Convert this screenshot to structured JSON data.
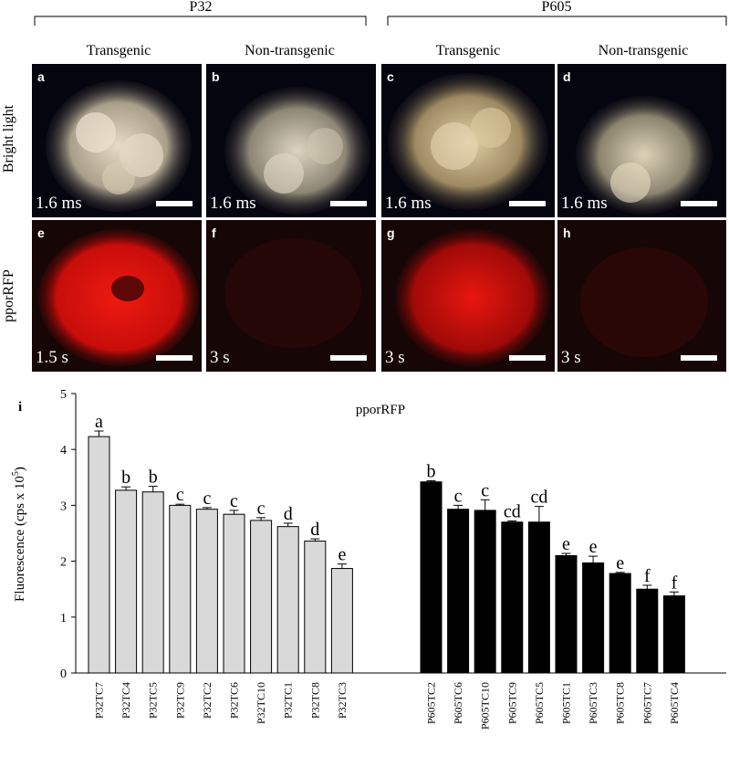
{
  "figure": {
    "group_headers": [
      "P32",
      "P605"
    ],
    "column_labels": [
      "Transgenic",
      "Non-transgenic",
      "Transgenic",
      "Non-transgenic"
    ],
    "row_labels": [
      "Bright light",
      "pporRFP"
    ],
    "panels_top": [
      {
        "letter": "a",
        "exposure": "1.6 ms"
      },
      {
        "letter": "b",
        "exposure": "1.6 ms"
      },
      {
        "letter": "c",
        "exposure": "1.6 ms"
      },
      {
        "letter": "d",
        "exposure": "1.6 ms"
      }
    ],
    "panels_bottom": [
      {
        "letter": "e",
        "exposure": "1.5 s"
      },
      {
        "letter": "f",
        "exposure": "3 s"
      },
      {
        "letter": "g",
        "exposure": "3 s"
      },
      {
        "letter": "h",
        "exposure": "3 s"
      }
    ],
    "colors": {
      "bright_bg": "#050510",
      "callus_light": "#d8cfb8",
      "rfp_red": "#e01010",
      "bar_light": "#d9d9d9",
      "bar_dark": "#000000"
    }
  },
  "chart_data": {
    "type": "bar",
    "panel_letter": "i",
    "title": "pporRFP",
    "ylabel": "Fluorescence (cps x 10",
    "ylabel_exp": "5",
    "ylim": [
      0,
      5
    ],
    "yticks": [
      "0",
      "1",
      "2",
      "3",
      "4",
      "5"
    ],
    "series": [
      {
        "group": "P32",
        "color": "#d9d9d9",
        "categories": [
          "P32TC7",
          "P32TC4",
          "P32TC5",
          "P32TC9",
          "P32TC2",
          "P32TC6",
          "P32TC10",
          "P32TC1",
          "P32TC8",
          "P32TC3"
        ],
        "values": [
          4.23,
          3.27,
          3.24,
          3.0,
          2.93,
          2.84,
          2.73,
          2.62,
          2.36,
          1.87
        ],
        "errors": [
          0.1,
          0.06,
          0.1,
          0.02,
          0.03,
          0.07,
          0.05,
          0.06,
          0.04,
          0.08
        ],
        "letters": [
          "a",
          "b",
          "b",
          "c",
          "c",
          "c",
          "c",
          "d",
          "d",
          "e"
        ]
      },
      {
        "group": "P605",
        "color": "#000000",
        "categories": [
          "P605TC2",
          "P605TC6",
          "P605TC10",
          "P605TC9",
          "P605TC5",
          "P605TC1",
          "P605TC3",
          "P605TC8",
          "P605TC7",
          "P605TC4"
        ],
        "values": [
          3.42,
          2.93,
          2.91,
          2.7,
          2.7,
          2.1,
          1.97,
          1.78,
          1.5,
          1.38
        ],
        "errors": [
          0.02,
          0.07,
          0.19,
          0.02,
          0.28,
          0.04,
          0.12,
          0.02,
          0.07,
          0.07
        ],
        "letters": [
          "b",
          "c",
          "c",
          "cd",
          "cd",
          "e",
          "e",
          "e",
          "f",
          "f"
        ]
      }
    ]
  }
}
